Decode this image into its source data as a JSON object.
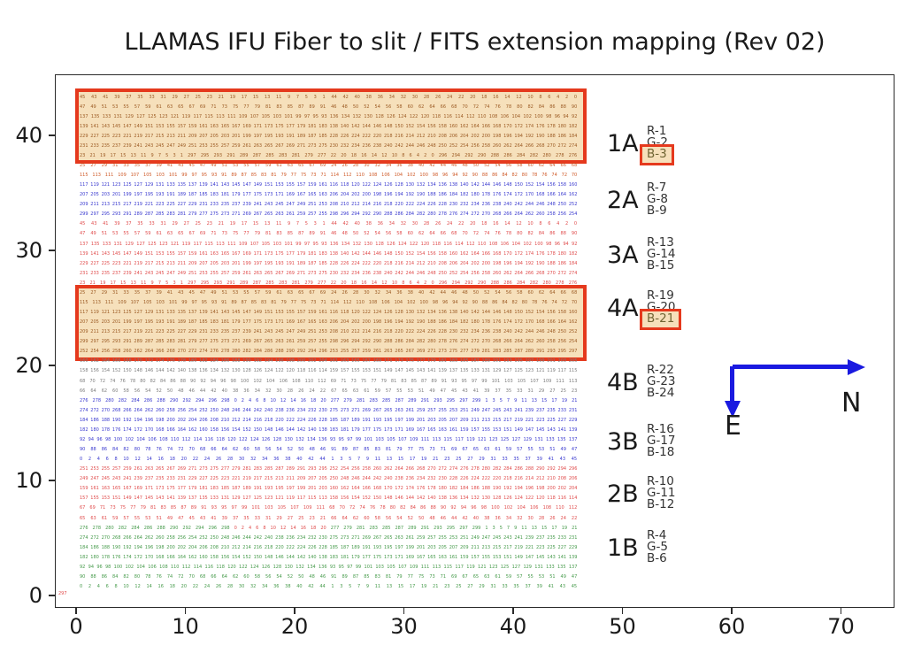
{
  "chart_data": {
    "type": "table",
    "title": "LLAMAS IFU Fiber to slit / FITS extension mapping (Rev 02)",
    "xlabel": "",
    "ylabel": "",
    "x_ticks": [
      0,
      10,
      20,
      30,
      40,
      50,
      60,
      70
    ],
    "y_ticks": [
      0,
      10,
      20,
      30,
      40
    ],
    "grid": false,
    "compass": {
      "north_label": "N",
      "east_label": "E",
      "arrow_color": "#1a1ae0"
    },
    "stray_label": "297",
    "bands": [
      {
        "id": "1A",
        "extensions": [
          "R-1",
          "G-2",
          "B-3"
        ],
        "highlighted_extension": "B-3",
        "highlighted": true
      },
      {
        "id": "2A",
        "extensions": [
          "R-7",
          "G-8",
          "B-9"
        ],
        "highlighted_extension": null,
        "highlighted": false
      },
      {
        "id": "3A",
        "extensions": [
          "R-13",
          "G-14",
          "B-15"
        ],
        "highlighted_extension": null,
        "highlighted": false
      },
      {
        "id": "4A",
        "extensions": [
          "R-19",
          "G-20",
          "B-21"
        ],
        "highlighted_extension": "B-21",
        "highlighted": true
      },
      {
        "id": "4B",
        "extensions": [
          "R-22",
          "G-23",
          "B-24"
        ],
        "highlighted_extension": null,
        "highlighted": false
      },
      {
        "id": "3B",
        "extensions": [
          "R-16",
          "G-17",
          "B-18"
        ],
        "highlighted_extension": null,
        "highlighted": false
      },
      {
        "id": "2B",
        "extensions": [
          "R-10",
          "G-11",
          "B-12"
        ],
        "highlighted_extension": null,
        "highlighted": false
      },
      {
        "id": "1B",
        "extensions": [
          "R-4",
          "G-5",
          "B-6"
        ],
        "highlighted_extension": null,
        "highlighted": false
      }
    ],
    "colors": {
      "rect_fill": "#f6e0bb",
      "rect_border": "#e5391d",
      "rect": "#9c5b24",
      "hl_text": "#6f6433",
      "orange": "#cf5a28",
      "blue": "#3939cf",
      "red": "#e04c4c",
      "gray": "#7d7d7d",
      "green": "#459a4a",
      "stray": "#e04c4c"
    },
    "row_patterns": {
      "P1": [
        [
          45,
          1,
          -2
        ],
        [
          44,
          0,
          -2
        ]
      ],
      "P2": [
        [
          47,
          91,
          2
        ],
        [
          46,
          90,
          2
        ]
      ],
      "P3": [
        [
          137,
          93,
          -2
        ],
        [
          136,
          92,
          -2
        ]
      ],
      "P4": [
        [
          139,
          183,
          2
        ],
        [
          138,
          182,
          2
        ]
      ],
      "P5": [
        [
          229,
          185,
          -2
        ],
        [
          228,
          184,
          -2
        ]
      ],
      "P6": [
        [
          231,
          275,
          2
        ],
        [
          230,
          274,
          2
        ]
      ],
      "P7": [
        [
          23,
          1,
          -2
        ],
        [
          297,
          277,
          -2
        ],
        [
          22,
          0,
          -2
        ],
        [
          296,
          276,
          -2
        ]
      ],
      "P8": [
        [
          25,
          69,
          2
        ],
        [
          24,
          68,
          2
        ]
      ],
      "P9": [
        [
          115,
          71,
          -2
        ],
        [
          114,
          70,
          -2
        ]
      ],
      "P10": [
        [
          117,
          161,
          2
        ],
        [
          116,
          160,
          2
        ]
      ],
      "P11": [
        [
          207,
          163,
          -2
        ],
        [
          206,
          162,
          -2
        ]
      ],
      "P12": [
        [
          209,
          253,
          2
        ],
        [
          208,
          252,
          2
        ]
      ],
      "P13": [
        [
          299,
          255,
          -2
        ],
        [
          298,
          254,
          -2
        ]
      ],
      "P14": [
        [
          252,
          296,
          2
        ],
        [
          253,
          297,
          2
        ]
      ],
      "P15": [
        [
          160,
          204,
          2
        ],
        [
          161,
          205,
          2
        ]
      ],
      "P16": [
        [
          158,
          114,
          -2
        ],
        [
          159,
          115,
          -2
        ]
      ],
      "P17": [
        [
          68,
          112,
          2
        ],
        [
          69,
          113,
          2
        ]
      ],
      "P18": [
        [
          66,
          22,
          -2
        ],
        [
          67,
          23,
          -2
        ]
      ],
      "P19": [
        [
          276,
          298,
          2
        ],
        [
          0,
          20,
          2
        ],
        [
          277,
          299,
          2
        ],
        [
          1,
          21,
          2
        ]
      ],
      "P20": [
        [
          274,
          230,
          -2
        ],
        [
          275,
          231,
          -2
        ]
      ],
      "P21": [
        [
          184,
          228,
          2
        ],
        [
          185,
          229,
          2
        ]
      ],
      "P22": [
        [
          182,
          138,
          -2
        ],
        [
          183,
          139,
          -2
        ]
      ],
      "P23": [
        [
          92,
          136,
          2
        ],
        [
          93,
          137,
          2
        ]
      ],
      "P24": [
        [
          90,
          46,
          -2
        ],
        [
          91,
          47,
          -2
        ]
      ],
      "P25": [
        [
          0,
          44,
          2
        ],
        [
          1,
          45,
          2
        ]
      ],
      "P26": [
        [
          251,
          295,
          2
        ],
        [
          252,
          296,
          2
        ]
      ],
      "P27": [
        [
          249,
          205,
          -2
        ],
        [
          250,
          206,
          -2
        ]
      ],
      "P28": [
        [
          159,
          203,
          2
        ],
        [
          160,
          204,
          2
        ]
      ],
      "P29": [
        [
          157,
          113,
          -2
        ],
        [
          158,
          114,
          -2
        ]
      ],
      "P30": [
        [
          67,
          111,
          2
        ],
        [
          68,
          112,
          2
        ]
      ],
      "P31": [
        [
          65,
          21,
          -2
        ],
        [
          66,
          22,
          -2
        ]
      ]
    },
    "rows": [
      {
        "p": "P1",
        "c": "rect"
      },
      {
        "p": "P2",
        "c": "rect"
      },
      {
        "p": "P3",
        "c": "rect"
      },
      {
        "p": "P4",
        "c": "rect"
      },
      {
        "p": "P5",
        "c": "rect"
      },
      {
        "p": "P6",
        "c": "rect"
      },
      {
        "p": "P7",
        "c": "rect"
      },
      {
        "p": "P8",
        "c": "orange"
      },
      {
        "p": "P9",
        "c": "orange"
      },
      {
        "p": "P10",
        "c": "blue"
      },
      {
        "p": "P11",
        "c": "blue"
      },
      {
        "p": "P12",
        "c": "blue"
      },
      {
        "p": "P13",
        "c": "blue"
      },
      {
        "p": "P1",
        "c": "red"
      },
      {
        "p": "P2",
        "c": "red"
      },
      {
        "p": "P3",
        "c": "red"
      },
      {
        "p": "P4",
        "c": "red"
      },
      {
        "p": "P5",
        "c": "red"
      },
      {
        "p": "P6",
        "c": "red"
      },
      {
        "p": "P7",
        "c": "red"
      },
      {
        "p": "P8",
        "c": "rect"
      },
      {
        "p": "P9",
        "c": "rect"
      },
      {
        "p": "P10",
        "c": "rect"
      },
      {
        "p": "P11",
        "c": "rect"
      },
      {
        "p": "P12",
        "c": "rect"
      },
      {
        "p": "P13",
        "c": "rect"
      },
      {
        "p": "P14",
        "c": "rect"
      },
      {
        "p": "P15",
        "c": "gray"
      },
      {
        "p": "P16",
        "c": "gray"
      },
      {
        "p": "P17",
        "c": "gray"
      },
      {
        "p": "P18",
        "c": "gray"
      },
      {
        "p": "P19",
        "c": "blue"
      },
      {
        "p": "P20",
        "c": "blue"
      },
      {
        "p": "P21",
        "c": "blue"
      },
      {
        "p": "P22",
        "c": "blue"
      },
      {
        "p": "P23",
        "c": "blue"
      },
      {
        "p": "P24",
        "c": "blue"
      },
      {
        "p": "P25",
        "c": "blue"
      },
      {
        "p": "P26",
        "c": "red"
      },
      {
        "p": "P27",
        "c": "red"
      },
      {
        "p": "P28",
        "c": "red"
      },
      {
        "p": "P29",
        "c": "red"
      },
      {
        "p": "P30",
        "c": "red"
      },
      {
        "p": "P31",
        "c": "red"
      },
      {
        "p": "P19",
        "c": "green",
        "seg_colors": {
          "1": "red"
        }
      },
      {
        "p": "P20",
        "c": "green"
      },
      {
        "p": "P21",
        "c": "green"
      },
      {
        "p": "P22",
        "c": "green"
      },
      {
        "p": "P23",
        "c": "green"
      },
      {
        "p": "P24",
        "c": "green"
      },
      {
        "p": "P25",
        "c": "green"
      }
    ]
  }
}
